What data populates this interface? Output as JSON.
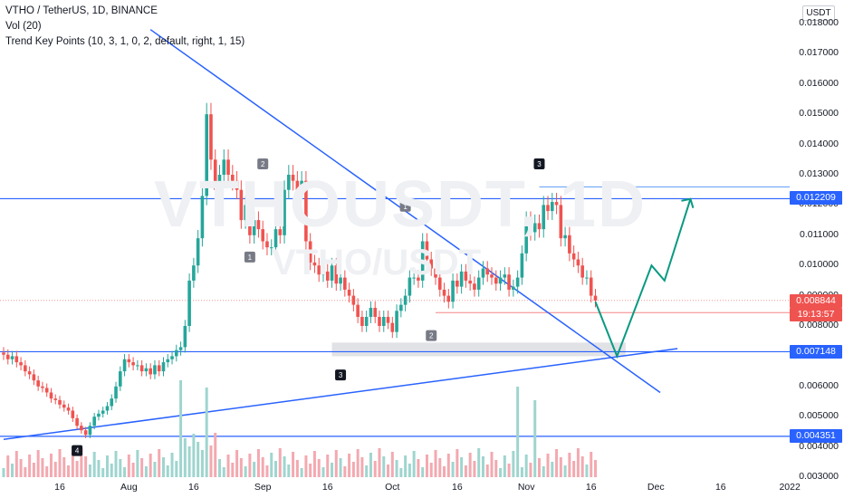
{
  "legend": {
    "symbol": "VTHO / TetherUS, 1D, BINANCE",
    "volume": "Vol (20)",
    "indicator": "Trend Key Points (10, 3, 1, 0, 2, default, right, 1, 15)"
  },
  "watermark": {
    "main": "VTHOUSDT, 1D",
    "sub": "VTHO/USDT"
  },
  "unit_label": "USDT",
  "y_ticks": [
    "0.018000",
    "0.017000",
    "0.016000",
    "0.015000",
    "0.014000",
    "0.013000",
    "0.012000",
    "0.011000",
    "0.010000",
    "0.009000",
    "0.008000",
    "0.007000",
    "0.006000",
    "0.005000",
    "0.004000",
    "0.003000"
  ],
  "x_ticks": [
    "16",
    "Aug",
    "16",
    "Sep",
    "16",
    "Oct",
    "16",
    "Nov",
    "16",
    "Dec",
    "16",
    "2022"
  ],
  "price_tags": {
    "res": "0.012209",
    "last": "0.008844",
    "countdown": "19:13:57",
    "sup": "0.007148",
    "low": "0.004351"
  },
  "colors": {
    "up": "#26a69a",
    "down": "#ef5350",
    "line": "#2962ff",
    "volUp": "#9fd5cf",
    "volDown": "#f3a9b0",
    "projection": "#089981"
  },
  "chart_data": {
    "type": "candlestick",
    "series": [
      {
        "name": "VTHO / TetherUS, 1D, BINANCE",
        "x_range": [
          "2021-07-03",
          "2021-11-19"
        ],
        "close": [
          0.00705,
          0.0069,
          0.007,
          0.0068,
          0.0067,
          0.0065,
          0.0064,
          0.0062,
          0.006,
          0.00595,
          0.0058,
          0.0056,
          0.00555,
          0.0054,
          0.0053,
          0.0052,
          0.00495,
          0.0047,
          0.00455,
          0.0044,
          0.0047,
          0.005,
          0.0051,
          0.0052,
          0.00535,
          0.0056,
          0.006,
          0.0065,
          0.0069,
          0.0068,
          0.0067,
          0.0067,
          0.0065,
          0.0066,
          0.0064,
          0.0067,
          0.0065,
          0.0068,
          0.0069,
          0.007,
          0.0072,
          0.0073,
          0.008,
          0.0095,
          0.01,
          0.0109,
          0.0123,
          0.015,
          0.0135,
          0.0125,
          0.013,
          0.0135,
          0.013,
          0.0128,
          0.0125,
          0.0115,
          0.012,
          0.011,
          0.0115,
          0.0112,
          0.0108,
          0.0106,
          0.0106,
          0.0112,
          0.011,
          0.0125,
          0.013,
          0.0128,
          0.0125,
          0.0128,
          0.0108,
          0.0101,
          0.01,
          0.0097,
          0.0098,
          0.0095,
          0.01,
          0.0094,
          0.0096,
          0.0092,
          0.009,
          0.0087,
          0.0083,
          0.008,
          0.0083,
          0.0086,
          0.0083,
          0.008,
          0.0083,
          0.0081,
          0.0078,
          0.0085,
          0.0087,
          0.009,
          0.0096,
          0.0096,
          0.0095,
          0.0108,
          0.0102,
          0.0099,
          0.0096,
          0.0092,
          0.009,
          0.0088,
          0.0095,
          0.0093,
          0.0098,
          0.0095,
          0.0094,
          0.0092,
          0.0096,
          0.0099,
          0.0097,
          0.0096,
          0.0094,
          0.0096,
          0.0097,
          0.0092,
          0.0093,
          0.0096,
          0.0104,
          0.0115,
          0.0111,
          0.0114,
          0.0112,
          0.012,
          0.0118,
          0.0121,
          0.012,
          0.0109,
          0.011,
          0.0104,
          0.0102,
          0.01,
          0.0096,
          0.0096,
          0.009,
          0.00884
        ],
        "support_level": 0.007148,
        "resistance_level": 0.012209,
        "low_level": 0.004351,
        "last_price": 0.008844,
        "pivot_labels": [
          "4",
          "1",
          "2",
          "3",
          "1",
          "2",
          "3",
          "3"
        ],
        "projection": [
          {
            "x": "2021-11-22",
            "y": 0.007
          },
          {
            "x": "2021-11-30",
            "y": 0.01
          },
          {
            "x": "2021-12-03",
            "y": 0.0095
          },
          {
            "x": "2021-12-09",
            "y": 0.0122
          }
        ]
      }
    ],
    "y_range": [
      0.003,
      0.0185
    ],
    "x_labels": [
      "16",
      "Aug",
      "16",
      "Sep",
      "16",
      "Oct",
      "16",
      "Nov",
      "16",
      "Dec",
      "16",
      "2022"
    ],
    "legend": [
      "VTHO / TetherUS, 1D, BINANCE",
      "Vol (20)",
      "Trend Key Points (10, 3, 1, 0, 2, default, right, 1, 15)"
    ]
  }
}
